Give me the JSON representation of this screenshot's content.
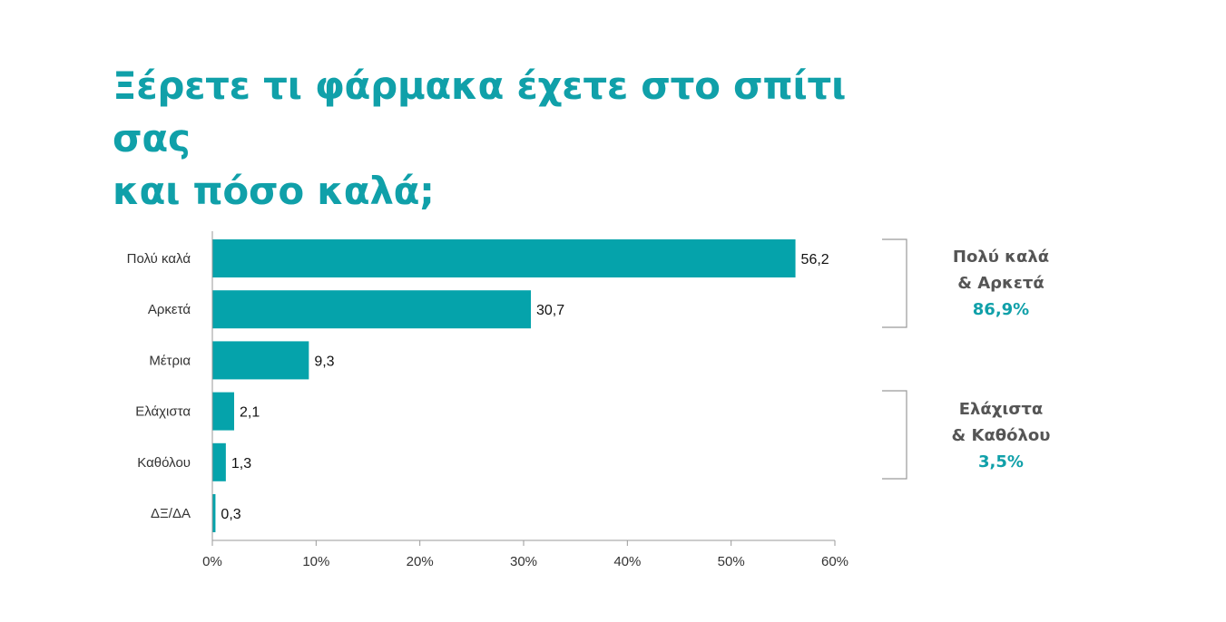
{
  "title": {
    "line1": "Ξέρετε τι φάρμακα έχετε στο σπίτι σας",
    "line2": "και πόσο καλά;"
  },
  "colors": {
    "accent": "#10a0a9",
    "bar": "#05a3ab",
    "axis": "#9a9a9a",
    "bracket": "#9a9a9a",
    "group_text": "#555555"
  },
  "chart_data": {
    "type": "bar",
    "orientation": "horizontal",
    "categories": [
      "Πολύ καλά",
      "Αρκετά",
      "Μέτρια",
      "Ελάχιστα",
      "Καθόλου",
      "ΔΞ/ΔΑ"
    ],
    "values": [
      56.2,
      30.7,
      9.3,
      2.1,
      1.3,
      0.3
    ],
    "value_labels": [
      "56,2",
      "30,7",
      "9,3",
      "2,1",
      "1,3",
      "0,3"
    ],
    "xlim": [
      0,
      60
    ],
    "x_ticks": [
      "0%",
      "10%",
      "20%",
      "30%",
      "40%",
      "50%",
      "60%"
    ],
    "grid": false
  },
  "groups": [
    {
      "line1": "Πολύ καλά",
      "line2": "& Αρκετά",
      "value": "86,9%"
    },
    {
      "line1": "Ελάχιστα",
      "line2": "& Καθόλου",
      "value": "3,5%"
    }
  ]
}
